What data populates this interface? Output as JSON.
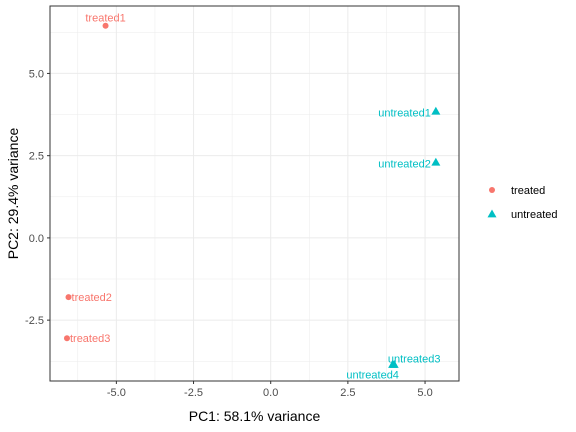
{
  "chart_data": {
    "type": "scatter",
    "xlabel": "PC1: 58.1% variance",
    "ylabel": "PC2: 29.4% variance",
    "xlim": [
      -7.15,
      6.1
    ],
    "ylim": [
      -4.35,
      7.05
    ],
    "xticks": [
      -5.0,
      -2.5,
      0.0,
      2.5,
      5.0
    ],
    "xtick_labels": [
      "-5.0",
      "-2.5",
      "0.0",
      "2.5",
      "5.0"
    ],
    "yticks": [
      -2.5,
      0.0,
      2.5,
      5.0
    ],
    "ytick_labels": [
      "-2.5",
      "0.0",
      "2.5",
      "5.0"
    ],
    "grid": true,
    "legend_position": "right",
    "series": [
      {
        "name": "treated",
        "color": "#F8766D",
        "shape": "circle",
        "points": [
          {
            "label": "treated1",
            "x": -5.35,
            "y": 6.45
          },
          {
            "label": "treated2",
            "x": -6.55,
            "y": -1.8
          },
          {
            "label": "treated3",
            "x": -6.6,
            "y": -3.05
          }
        ]
      },
      {
        "name": "untreated",
        "color": "#00BFC4",
        "shape": "triangle",
        "points": [
          {
            "label": "untreated1",
            "x": 5.35,
            "y": 3.85
          },
          {
            "label": "untreated2",
            "x": 5.35,
            "y": 2.3
          },
          {
            "label": "untreated3",
            "x": 4.0,
            "y": -3.85
          },
          {
            "label": "untreated4",
            "x": 3.95,
            "y": -3.85
          }
        ]
      }
    ]
  }
}
